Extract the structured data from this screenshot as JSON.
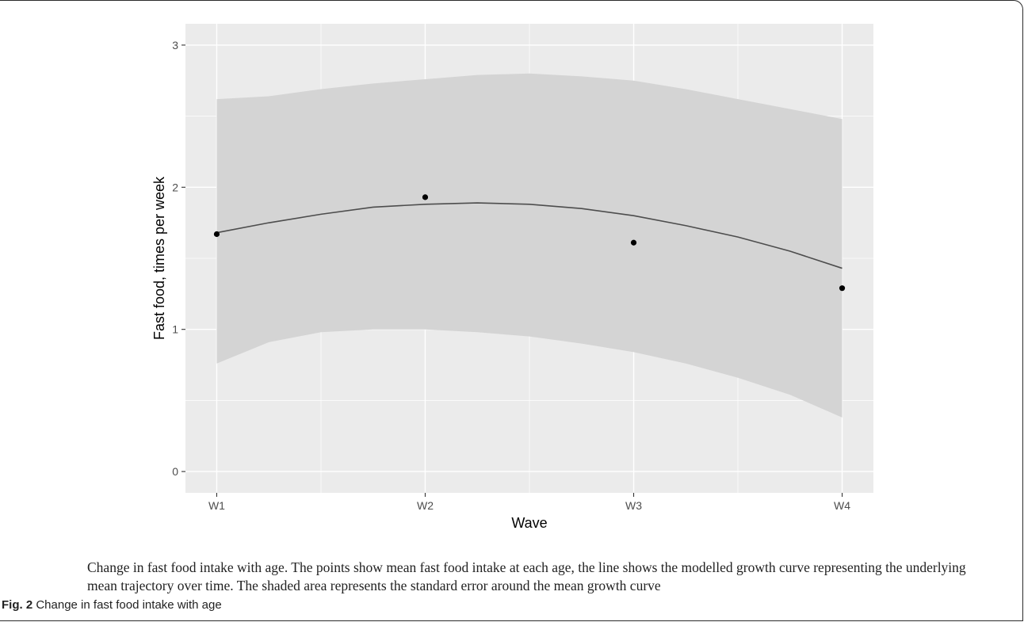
{
  "figure": {
    "description": "Change in fast food intake with age. The points show mean fast food intake at each age, the line shows the modelled growth curve representing the underlying mean trajectory over time. The shaded area represents the standard error around the mean growth curve",
    "label": "Fig. 2",
    "title": "Change in fast food intake with age"
  },
  "colors": {
    "panel": "#ebebeb",
    "grid": "#ffffff",
    "ribbon": "#d4d4d4",
    "curve": "#4d4d4d",
    "points": "#000000"
  },
  "chart_data": {
    "type": "line",
    "xlabel": "Wave",
    "ylabel": "Fast food, times per week",
    "categories": [
      "W1",
      "W2",
      "W3",
      "W4"
    ],
    "x": [
      1,
      2,
      3,
      4
    ],
    "xlim": [
      0.85,
      4.15
    ],
    "ylim": [
      -0.15,
      3.15
    ],
    "yticks": [
      0,
      1,
      2,
      3
    ],
    "grid": true,
    "legend": "none",
    "points": [
      {
        "x": 1,
        "y": 1.67
      },
      {
        "x": 2,
        "y": 1.93
      },
      {
        "x": 3,
        "y": 1.61
      },
      {
        "x": 4,
        "y": 1.29
      }
    ],
    "curve": {
      "x": [
        1,
        1.25,
        1.5,
        1.75,
        2,
        2.25,
        2.5,
        2.75,
        3,
        3.25,
        3.5,
        3.75,
        4
      ],
      "y": [
        1.68,
        1.75,
        1.81,
        1.86,
        1.88,
        1.89,
        1.88,
        1.85,
        1.8,
        1.73,
        1.65,
        1.55,
        1.43
      ]
    },
    "ribbon": {
      "x": [
        1,
        1.25,
        1.5,
        1.75,
        2,
        2.25,
        2.5,
        2.75,
        3,
        3.25,
        3.5,
        3.75,
        4
      ],
      "upper": [
        2.62,
        2.64,
        2.69,
        2.73,
        2.76,
        2.79,
        2.8,
        2.78,
        2.75,
        2.69,
        2.62,
        2.55,
        2.48
      ],
      "lower": [
        0.76,
        0.91,
        0.98,
        1.0,
        1.0,
        0.98,
        0.95,
        0.9,
        0.84,
        0.76,
        0.66,
        0.54,
        0.38
      ]
    }
  }
}
